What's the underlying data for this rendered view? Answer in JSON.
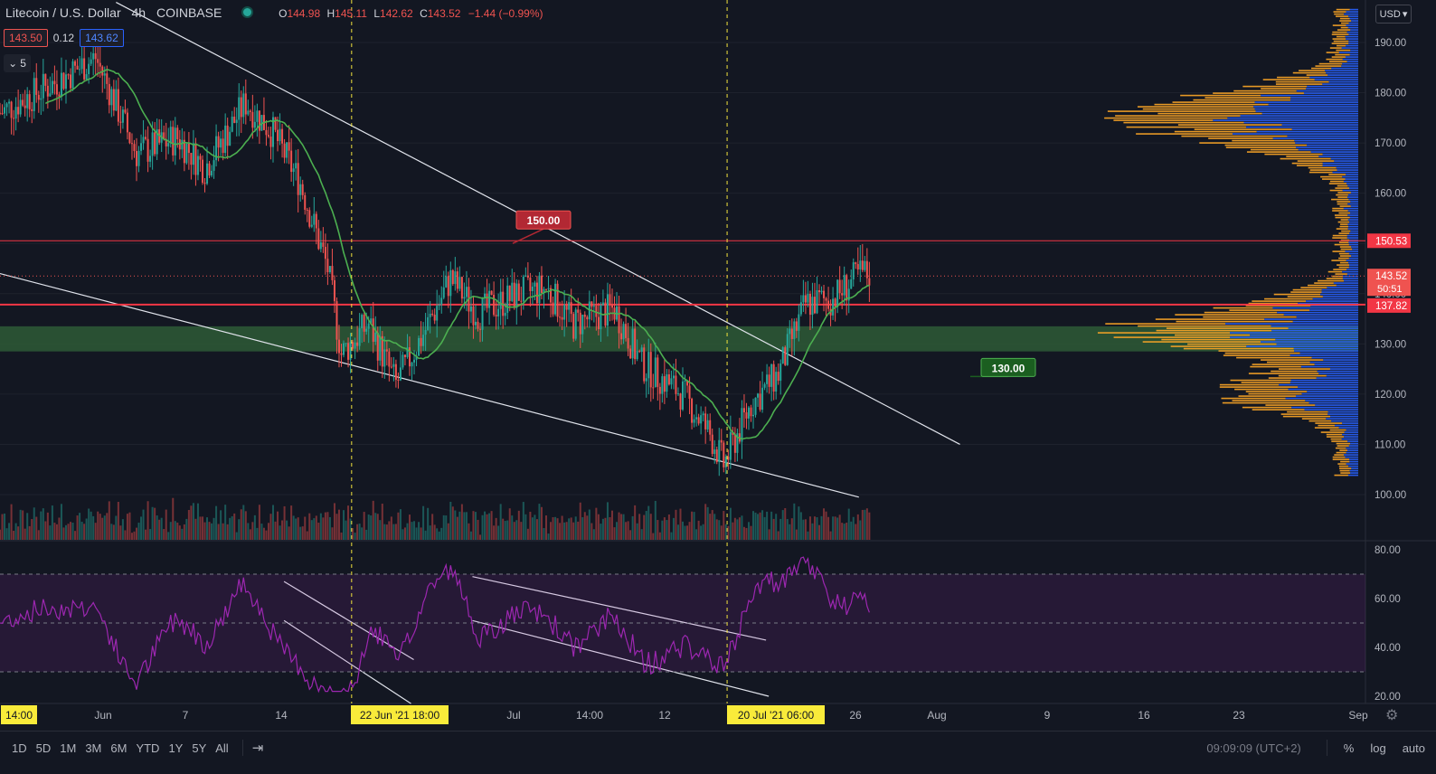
{
  "header": {
    "symbol": "Litecoin / U.S. Dollar",
    "interval": "4h",
    "exchange": "COINBASE",
    "open_label": "O",
    "open": "144.98",
    "high_label": "H",
    "high": "145.11",
    "low_label": "L",
    "low": "142.62",
    "close_label": "C",
    "close": "143.52",
    "change": "−1.44 (−0.99%)",
    "bid": "143.50",
    "spread": "0.12",
    "ask": "143.62",
    "indicator_count": "5"
  },
  "currency": "USD",
  "colors": {
    "background": "#131722",
    "up": "#26a69a",
    "down": "#ef5350",
    "ma": "#4caf50",
    "rsi": "#9c27b0",
    "resistance": "#f23645",
    "support_zone": "#2e5a36",
    "volume_profile_up": "#2962ff",
    "volume_profile_down": "#ffa726"
  },
  "chart_data": [
    {
      "type": "candlestick",
      "title": "Litecoin / U.S. Dollar · 4h · COINBASE",
      "ylim": [
        95,
        197
      ],
      "y_ticks": [
        "190.00",
        "180.00",
        "170.00",
        "160.00",
        "150.00",
        "140.00",
        "130.00",
        "120.00",
        "110.00",
        "100.00"
      ],
      "x_ticks": [
        "14:00",
        "Jun",
        "7",
        "14",
        "22 Jun '21  18:00",
        "Jul",
        "14:00",
        "12",
        "20 Jul '21  06:00",
        "26",
        "Aug",
        "9",
        "16",
        "23",
        "Sep"
      ],
      "approx_daily_close": [
        {
          "date": "May 28",
          "close": 176
        },
        {
          "date": "Jun 1",
          "close": 182
        },
        {
          "date": "Jun 4",
          "close": 187
        },
        {
          "date": "Jun 7",
          "close": 168
        },
        {
          "date": "Jun 10",
          "close": 171
        },
        {
          "date": "Jun 12",
          "close": 165
        },
        {
          "date": "Jun 15",
          "close": 178
        },
        {
          "date": "Jun 17",
          "close": 172
        },
        {
          "date": "Jun 19",
          "close": 162
        },
        {
          "date": "Jun 21",
          "close": 145
        },
        {
          "date": "Jun 22",
          "close": 128
        },
        {
          "date": "Jun 24",
          "close": 134
        },
        {
          "date": "Jun 26",
          "close": 122
        },
        {
          "date": "Jun 28",
          "close": 132
        },
        {
          "date": "Jun 30",
          "close": 143
        },
        {
          "date": "Jul 2",
          "close": 136
        },
        {
          "date": "Jul 5",
          "close": 140
        },
        {
          "date": "Jul 7",
          "close": 141
        },
        {
          "date": "Jul 9",
          "close": 134
        },
        {
          "date": "Jul 12",
          "close": 137
        },
        {
          "date": "Jul 14",
          "close": 126
        },
        {
          "date": "Jul 17",
          "close": 120
        },
        {
          "date": "Jul 19",
          "close": 112
        },
        {
          "date": "Jul 20",
          "close": 106
        },
        {
          "date": "Jul 22",
          "close": 118
        },
        {
          "date": "Jul 24",
          "close": 124
        },
        {
          "date": "Jul 26",
          "close": 138
        },
        {
          "date": "Jul 28",
          "close": 139
        },
        {
          "date": "Jul 30",
          "close": 144
        }
      ],
      "last_price": "143.52",
      "countdown": "50:51",
      "horizontal_lines": [
        {
          "label": "150.53",
          "value": 150.53
        },
        {
          "label": "137.82",
          "value": 137.82
        }
      ],
      "support_zone": [
        128.5,
        133.5
      ],
      "annotations": [
        {
          "text": "150.00"
        },
        {
          "text": "130.00"
        }
      ],
      "volume_profile": true
    },
    {
      "type": "line",
      "title": "",
      "name": "RSI",
      "ylim": [
        18,
        82
      ],
      "y_ticks": [
        "80.00",
        "60.00",
        "40.00",
        "20.00"
      ],
      "band": [
        30,
        70
      ],
      "midline": 50
    }
  ],
  "toolbar": {
    "timeframes": [
      "1D",
      "5D",
      "1M",
      "3M",
      "6M",
      "YTD",
      "1Y",
      "5Y",
      "All"
    ],
    "clock": "09:09:09 (UTC+2)",
    "percent": "%",
    "log": "log",
    "auto": "auto"
  }
}
